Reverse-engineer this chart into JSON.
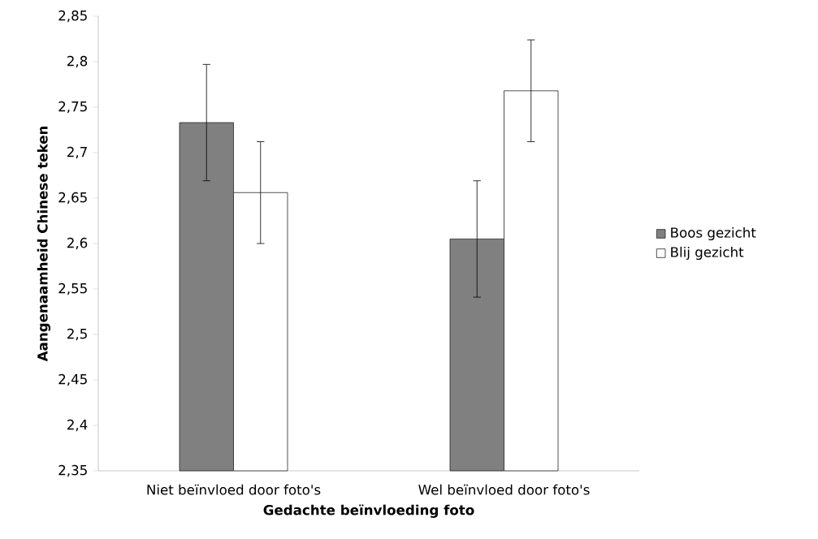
{
  "chart_data": {
    "type": "bar",
    "xlabel": "Gedachte beïnvloeding foto",
    "ylabel": "Aangenaamheid Chinese teken",
    "categories": [
      "Niet beïnvloed door foto's",
      "Wel beïnvloed door foto's"
    ],
    "series": [
      {
        "name": "Boos gezicht",
        "color": "#808080",
        "values": [
          2.733,
          2.605
        ],
        "errors": [
          0.064,
          0.064
        ]
      },
      {
        "name": "Blij gezicht",
        "color": "#ffffff",
        "values": [
          2.656,
          2.768
        ],
        "errors": [
          0.056,
          0.056
        ]
      }
    ],
    "ylim": [
      2.35,
      2.85
    ],
    "yticks": [
      {
        "value": 2.35,
        "label": "2,35"
      },
      {
        "value": 2.4,
        "label": "2,4"
      },
      {
        "value": 2.45,
        "label": "2,45"
      },
      {
        "value": 2.5,
        "label": "2,5"
      },
      {
        "value": 2.55,
        "label": "2,55"
      },
      {
        "value": 2.6,
        "label": "2,6"
      },
      {
        "value": 2.65,
        "label": "2,65"
      },
      {
        "value": 2.7,
        "label": "2,7"
      },
      {
        "value": 2.75,
        "label": "2,75"
      },
      {
        "value": 2.8,
        "label": "2,8"
      },
      {
        "value": 2.85,
        "label": "2,85"
      }
    ],
    "grid": false,
    "legend": "right"
  }
}
